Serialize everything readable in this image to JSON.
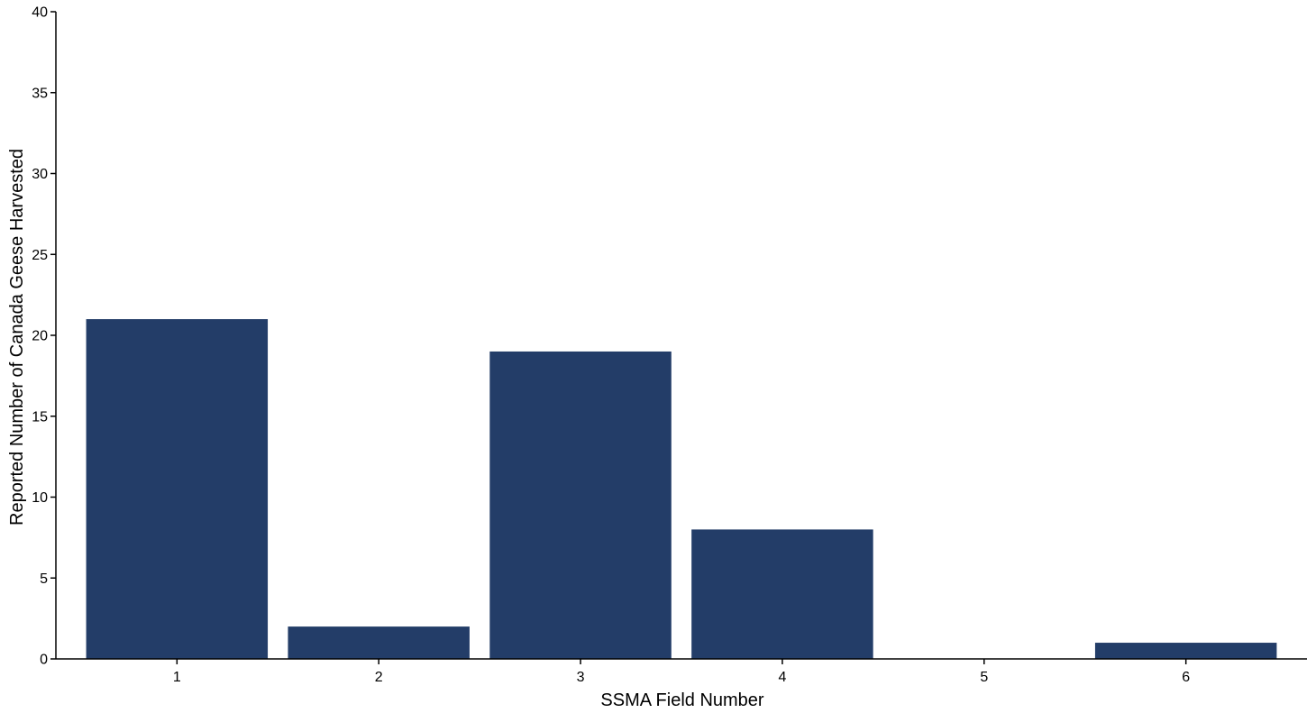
{
  "chart_data": {
    "type": "bar",
    "categories": [
      "1",
      "2",
      "3",
      "4",
      "5",
      "6"
    ],
    "values": [
      21,
      2,
      19,
      8,
      0,
      1
    ],
    "title": "",
    "xlabel": "SSMA Field Number",
    "ylabel": "Reported Number of Canada Geese Harvested",
    "ylim": [
      0,
      40
    ],
    "yticks": [
      0,
      5,
      10,
      15,
      20,
      25,
      30,
      35,
      40
    ],
    "grid": false,
    "legend": "none",
    "bar_color": "#233d68",
    "axis_color": "#000000"
  }
}
